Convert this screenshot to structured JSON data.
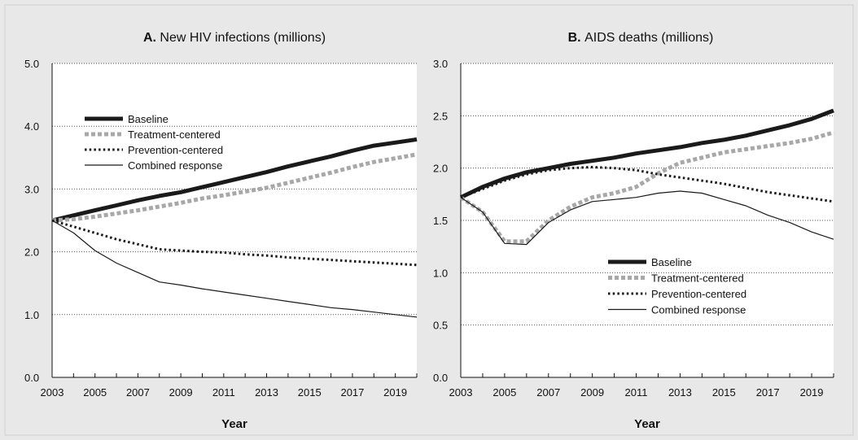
{
  "chart_data": [
    {
      "type": "line",
      "panel_letter": "A.",
      "title": "New HIV infections (millions)",
      "xlabel": "Year",
      "ylabel": "",
      "x": [
        2003,
        2004,
        2005,
        2006,
        2007,
        2008,
        2009,
        2010,
        2011,
        2012,
        2013,
        2014,
        2015,
        2016,
        2017,
        2018,
        2019,
        2020
      ],
      "xticks": [
        "2003",
        "2005",
        "2007",
        "2009",
        "2011",
        "2013",
        "2015",
        "2017",
        "2019"
      ],
      "yticks": [
        "0.0",
        "1.0",
        "2.0",
        "3.0",
        "4.0",
        "5.0"
      ],
      "xlim": [
        2003,
        2020
      ],
      "ylim": [
        0,
        5
      ],
      "grid": "horizontal dotted",
      "legend_position": "upper-left",
      "series": [
        {
          "name": "Baseline",
          "style": "thick-solid",
          "color": "#1a1a1a",
          "values": [
            2.5,
            2.58,
            2.66,
            2.74,
            2.82,
            2.89,
            2.95,
            3.03,
            3.11,
            3.19,
            3.27,
            3.36,
            3.44,
            3.52,
            3.61,
            3.69,
            3.74,
            3.79
          ]
        },
        {
          "name": "Treatment-centered",
          "style": "thick-dashed",
          "color": "#a8a8a8",
          "values": [
            2.5,
            2.52,
            2.56,
            2.61,
            2.66,
            2.72,
            2.78,
            2.85,
            2.9,
            2.96,
            3.02,
            3.1,
            3.18,
            3.26,
            3.35,
            3.43,
            3.49,
            3.55
          ]
        },
        {
          "name": "Prevention-centered",
          "style": "dotted",
          "color": "#1a1a1a",
          "values": [
            2.5,
            2.4,
            2.3,
            2.2,
            2.12,
            2.04,
            2.02,
            2.0,
            1.99,
            1.96,
            1.94,
            1.91,
            1.89,
            1.87,
            1.85,
            1.83,
            1.81,
            1.79
          ]
        },
        {
          "name": "Combined response",
          "style": "thin-solid",
          "color": "#1a1a1a",
          "values": [
            2.5,
            2.3,
            2.02,
            1.82,
            1.67,
            1.52,
            1.47,
            1.41,
            1.36,
            1.31,
            1.26,
            1.21,
            1.16,
            1.11,
            1.08,
            1.04,
            1.0,
            0.96
          ]
        }
      ]
    },
    {
      "type": "line",
      "panel_letter": "B.",
      "title": "AIDS deaths (millions)",
      "xlabel": "Year",
      "ylabel": "",
      "x": [
        2003,
        2004,
        2005,
        2006,
        2007,
        2008,
        2009,
        2010,
        2011,
        2012,
        2013,
        2014,
        2015,
        2016,
        2017,
        2018,
        2019,
        2020
      ],
      "xticks": [
        "2003",
        "2005",
        "2007",
        "2009",
        "2011",
        "2013",
        "2015",
        "2017",
        "2019"
      ],
      "yticks": [
        "0.0",
        "0.5",
        "1.0",
        "1.5",
        "2.0",
        "2.5",
        "3.0"
      ],
      "xlim": [
        2003,
        2020
      ],
      "ylim": [
        0,
        3.0
      ],
      "grid": "horizontal dotted",
      "legend_position": "lower-middle",
      "series": [
        {
          "name": "Baseline",
          "style": "thick-solid",
          "color": "#1a1a1a",
          "values": [
            1.72,
            1.82,
            1.9,
            1.96,
            2.0,
            2.04,
            2.07,
            2.1,
            2.14,
            2.17,
            2.2,
            2.24,
            2.27,
            2.31,
            2.36,
            2.41,
            2.47,
            2.55
          ]
        },
        {
          "name": "Treatment-centered",
          "style": "thick-dashed",
          "color": "#a8a8a8",
          "values": [
            1.72,
            1.58,
            1.3,
            1.3,
            1.5,
            1.63,
            1.72,
            1.76,
            1.82,
            1.95,
            2.05,
            2.1,
            2.15,
            2.18,
            2.21,
            2.24,
            2.28,
            2.34
          ]
        },
        {
          "name": "Prevention-centered",
          "style": "dotted",
          "color": "#1a1a1a",
          "values": [
            1.72,
            1.8,
            1.88,
            1.94,
            1.98,
            2.0,
            2.01,
            2.0,
            1.98,
            1.94,
            1.91,
            1.88,
            1.85,
            1.81,
            1.77,
            1.74,
            1.71,
            1.68
          ]
        },
        {
          "name": "Combined response",
          "style": "thin-solid",
          "color": "#1a1a1a",
          "values": [
            1.72,
            1.58,
            1.28,
            1.27,
            1.48,
            1.6,
            1.68,
            1.7,
            1.72,
            1.76,
            1.78,
            1.76,
            1.7,
            1.64,
            1.55,
            1.48,
            1.39,
            1.32
          ]
        }
      ]
    }
  ]
}
